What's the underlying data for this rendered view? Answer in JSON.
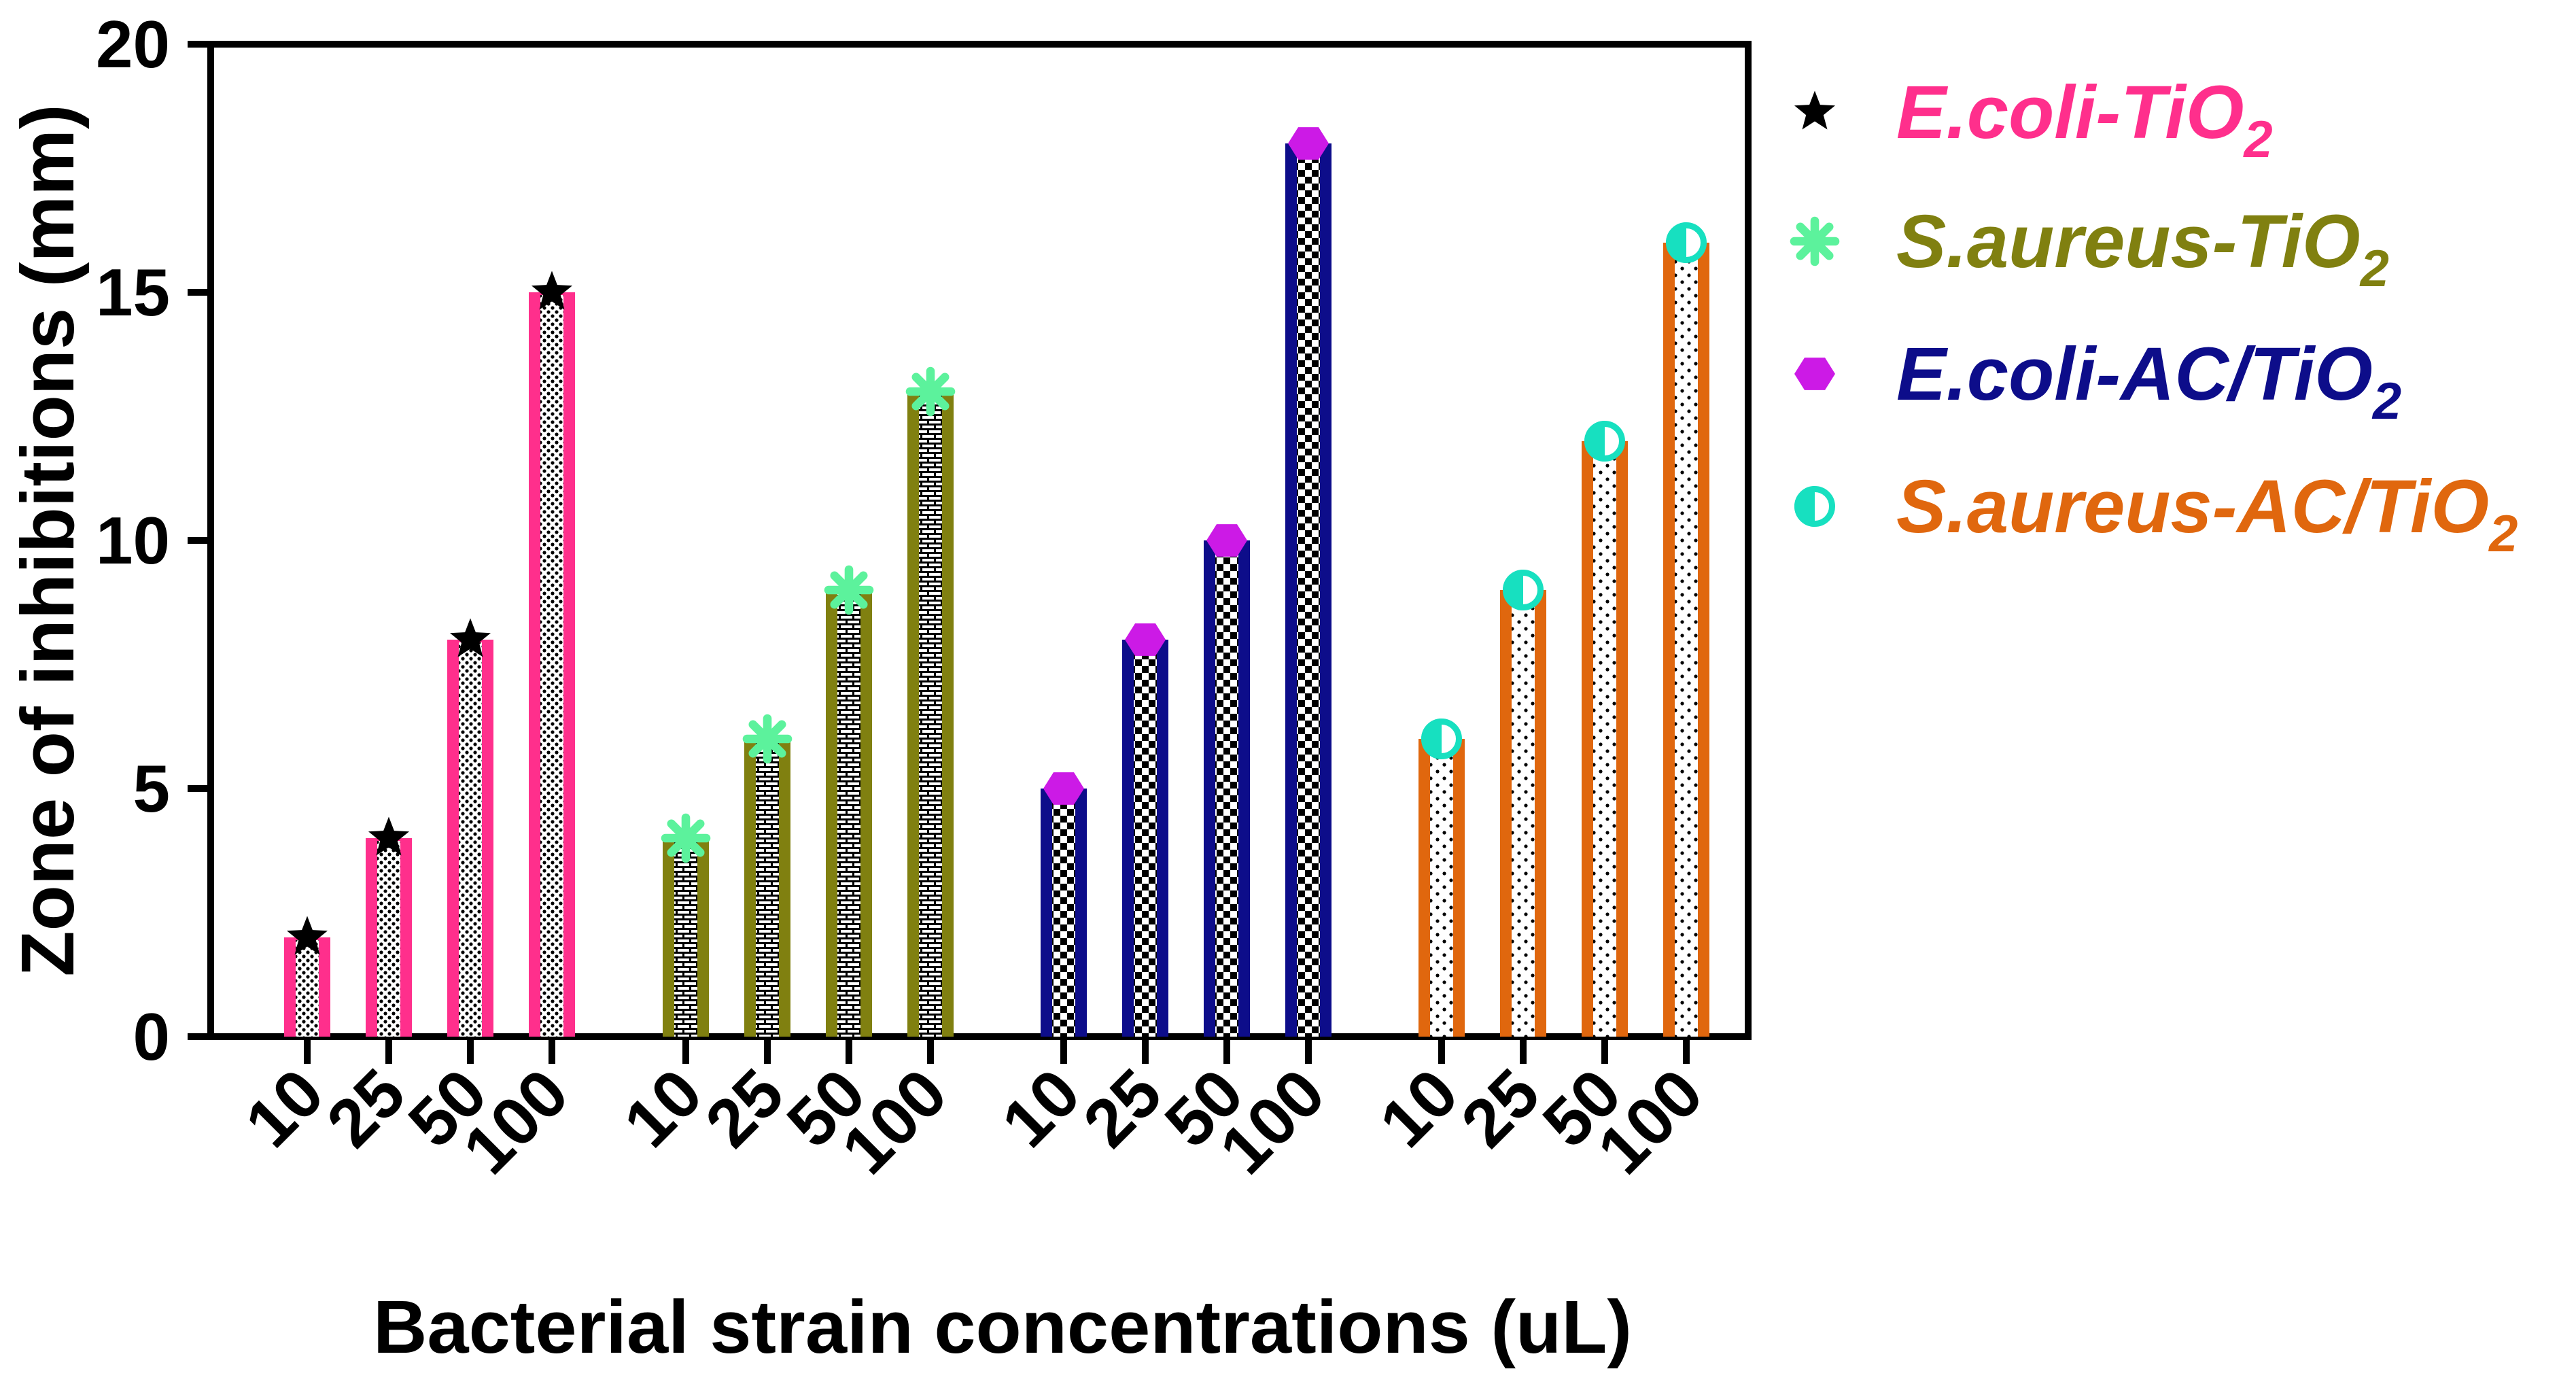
{
  "chart_data": {
    "type": "bar",
    "title": "",
    "xlabel": "Bacterial strain concentrations (uL)",
    "ylabel": "Zone of inhibitions (mm)",
    "ylim": [
      0,
      20
    ],
    "yticks": [
      0,
      5,
      10,
      15,
      20
    ],
    "grid": false,
    "legend_position": "right",
    "categories": [
      "10",
      "25",
      "50",
      "100"
    ],
    "series": [
      {
        "name": "E.coli-TiO2",
        "name_main": "E.coli-TiO",
        "name_sub": "2",
        "color": "#ff2f8c",
        "marker": "star",
        "marker_color": "#000000",
        "pattern": "dots-dense",
        "values": [
          2,
          4,
          8,
          15
        ]
      },
      {
        "name": "S.aureus-TiO2",
        "name_main": "S.aureus-TiO",
        "name_sub": "2",
        "color": "#808010",
        "marker": "asterisk",
        "marker_color": "#5cf29c",
        "pattern": "bricks",
        "values": [
          4,
          6,
          9,
          13
        ]
      },
      {
        "name": "E.coli-AC/TiO2",
        "name_main": "E.coli-AC/TiO",
        "name_sub": "2",
        "color": "#0d0d8a",
        "marker": "hexagon",
        "marker_color": "#cc1ae6",
        "pattern": "checker",
        "values": [
          5,
          8,
          10,
          18
        ]
      },
      {
        "name": "S.aureus-AC/TiO2",
        "name_main": "S.aureus-AC/TiO",
        "name_sub": "2",
        "color": "#e0670e",
        "marker": "half-circle",
        "marker_color": "#17e0c0",
        "pattern": "dots-sparse",
        "values": [
          6,
          9,
          12,
          16
        ]
      }
    ]
  }
}
